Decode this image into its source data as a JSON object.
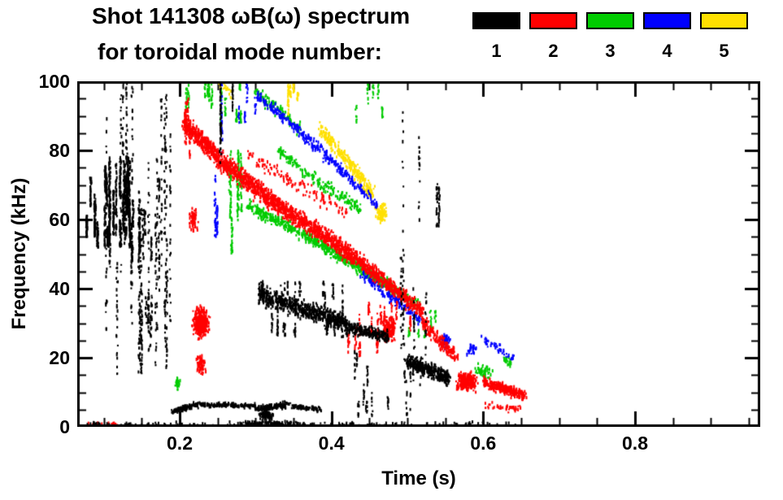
{
  "title": {
    "line1": "Shot 141308 ωB(ω) spectrum",
    "line2": "for toroidal mode number:"
  },
  "legend": {
    "modes": [
      {
        "label": "1",
        "color": "#000000"
      },
      {
        "label": "2",
        "color": "#ff0000"
      },
      {
        "label": "3",
        "color": "#00cc00"
      },
      {
        "label": "4",
        "color": "#0000ff"
      },
      {
        "label": "5",
        "color": "#ffe000"
      }
    ]
  },
  "chart_data": {
    "type": "scatter",
    "title": "Shot 141308 ωB(ω) spectrum for toroidal mode number 1-5",
    "xlabel": "Time (s)",
    "ylabel": "Frequency (kHz)",
    "xlim": [
      0.065,
      0.965
    ],
    "ylim": [
      0,
      100
    ],
    "xticks": [
      0.2,
      0.4,
      0.6,
      0.8
    ],
    "xtick_labels": [
      "0.2",
      "0.4",
      "0.6",
      "0.8"
    ],
    "yticks": [
      0,
      20,
      40,
      60,
      80,
      100
    ],
    "ytick_labels": [
      "0",
      "20",
      "40",
      "60",
      "80",
      "100"
    ],
    "minor_x_step": 0.05,
    "minor_y_step": 5,
    "grid": false,
    "legend_position": "top",
    "series": [
      {
        "name": "n=3",
        "mode": 3,
        "color": "#00cc00",
        "bands": [
          {
            "kind": "vcols",
            "t": [
              0.225,
              0.3
            ],
            "f": [
              88,
              100
            ],
            "cols": 10,
            "npts": 13
          },
          {
            "kind": "seg",
            "t": [
              0.3,
              0.36
            ],
            "f": [
              97,
              86
            ],
            "spread": 3,
            "n": 110
          },
          {
            "kind": "vcols",
            "t": [
              0.258,
              0.285
            ],
            "f": [
              50,
              80
            ],
            "cols": 6,
            "npts": 28
          },
          {
            "kind": "seg",
            "t": [
              0.29,
              0.36
            ],
            "f": [
              64,
              56
            ],
            "spread": 2.5,
            "n": 210
          },
          {
            "kind": "seg",
            "t": [
              0.36,
              0.43
            ],
            "f": [
              56,
              47
            ],
            "spread": 2.5,
            "n": 250
          },
          {
            "kind": "seg",
            "t": [
              0.43,
              0.48
            ],
            "f": [
              47,
              40
            ],
            "spread": 2.5,
            "n": 210
          },
          {
            "kind": "seg",
            "t": [
              0.48,
              0.515
            ],
            "f": [
              40,
              35
            ],
            "spread": 2,
            "n": 80
          },
          {
            "kind": "seg",
            "t": [
              0.36,
              0.44
            ],
            "f": [
              74,
              63
            ],
            "spread": 2.5,
            "n": 130
          },
          {
            "kind": "seg",
            "t": [
              0.33,
              0.36
            ],
            "f": [
              80,
              75
            ],
            "spread": 2,
            "n": 55
          },
          {
            "kind": "vcols",
            "t": [
              0.43,
              0.47
            ],
            "f": [
              88,
              100
            ],
            "cols": 5,
            "npts": 9
          },
          {
            "kind": "vcols",
            "t": [
              0.5,
              0.56
            ],
            "f": [
              24,
              34
            ],
            "cols": 6,
            "npts": 7
          },
          {
            "kind": "blob",
            "c": [
              0.6,
              16
            ],
            "r": [
              0.015,
              3
            ],
            "n": 55
          },
          {
            "kind": "blob",
            "c": [
              0.632,
              19
            ],
            "r": [
              0.008,
              2
            ],
            "n": 22
          },
          {
            "kind": "vcols",
            "t": [
              0.19,
              0.215
            ],
            "f": [
              85,
              100
            ],
            "cols": 4,
            "npts": 11
          },
          {
            "kind": "blob",
            "c": [
              0.197,
              12
            ],
            "r": [
              0.005,
              3
            ],
            "n": 22
          }
        ]
      },
      {
        "name": "n=5",
        "mode": 5,
        "color": "#ffe000",
        "bands": [
          {
            "kind": "vcols",
            "t": [
              0.335,
              0.36
            ],
            "f": [
              90,
              100
            ],
            "cols": 5,
            "npts": 14
          },
          {
            "kind": "seg",
            "t": [
              0.385,
              0.425
            ],
            "f": [
              86,
              76
            ],
            "spread": 3,
            "n": 150
          },
          {
            "kind": "seg",
            "t": [
              0.425,
              0.455
            ],
            "f": [
              76,
              67
            ],
            "spread": 3,
            "n": 140
          },
          {
            "kind": "blob",
            "c": [
              0.465,
              62
            ],
            "r": [
              0.01,
              4
            ],
            "n": 90
          },
          {
            "kind": "seg",
            "t": [
              0.25,
              0.27
            ],
            "f": [
              100,
              96
            ],
            "spread": 2,
            "n": 25
          }
        ]
      },
      {
        "name": "n=4",
        "mode": 4,
        "color": "#0000ff",
        "bands": [
          {
            "kind": "vcols",
            "t": [
              0.246,
              0.258
            ],
            "f": [
              55,
              100
            ],
            "cols": 3,
            "npts": 26
          },
          {
            "kind": "seg",
            "t": [
              0.3,
              0.345
            ],
            "f": [
              96,
              88
            ],
            "spread": 2,
            "n": 80
          },
          {
            "kind": "seg",
            "t": [
              0.345,
              0.415
            ],
            "f": [
              88,
              74
            ],
            "spread": 2.5,
            "n": 160
          },
          {
            "kind": "seg",
            "t": [
              0.415,
              0.46
            ],
            "f": [
              74,
              64
            ],
            "spread": 2,
            "n": 80
          },
          {
            "kind": "seg",
            "t": [
              0.44,
              0.52
            ],
            "f": [
              44,
              31
            ],
            "spread": 2.5,
            "n": 150
          },
          {
            "kind": "blob",
            "c": [
              0.55,
              25
            ],
            "r": [
              0.01,
              3
            ],
            "n": 45
          },
          {
            "kind": "blob",
            "c": [
              0.585,
              22
            ],
            "r": [
              0.008,
              2.5
            ],
            "n": 28
          },
          {
            "kind": "seg",
            "t": [
              0.6,
              0.64
            ],
            "f": [
              25,
              20
            ],
            "spread": 2,
            "n": 45
          },
          {
            "kind": "vcols",
            "t": [
              0.275,
              0.3
            ],
            "f": [
              88,
              100
            ],
            "cols": 4,
            "npts": 9
          }
        ]
      },
      {
        "name": "n=2",
        "mode": 2,
        "color": "#ff0000",
        "bands": [
          {
            "kind": "seg",
            "t": [
              0.205,
              0.26
            ],
            "f": [
              88,
              76
            ],
            "spread": 4,
            "n": 430
          },
          {
            "kind": "seg",
            "t": [
              0.26,
              0.33
            ],
            "f": [
              76,
              64
            ],
            "spread": 4,
            "n": 480
          },
          {
            "kind": "seg",
            "t": [
              0.33,
              0.4
            ],
            "f": [
              64,
              54
            ],
            "spread": 3.5,
            "n": 430
          },
          {
            "kind": "seg",
            "t": [
              0.4,
              0.465
            ],
            "f": [
              54,
              43
            ],
            "spread": 3.5,
            "n": 400
          },
          {
            "kind": "seg",
            "t": [
              0.465,
              0.52
            ],
            "f": [
              43,
              33
            ],
            "spread": 3,
            "n": 260
          },
          {
            "kind": "vcols",
            "t": [
              0.203,
              0.225
            ],
            "f": [
              78,
              96
            ],
            "cols": 5,
            "npts": 13
          },
          {
            "kind": "seg",
            "t": [
              0.29,
              0.42
            ],
            "f": [
              78,
              62
            ],
            "spread": 3,
            "n": 120
          },
          {
            "kind": "blob",
            "c": [
              0.228,
              30
            ],
            "r": [
              0.013,
              5.5
            ],
            "n": 400
          },
          {
            "kind": "blob",
            "c": [
              0.228,
              18
            ],
            "r": [
              0.008,
              3.5
            ],
            "n": 80
          },
          {
            "kind": "blob",
            "c": [
              0.218,
              60
            ],
            "r": [
              0.008,
              5
            ],
            "n": 60
          },
          {
            "kind": "vcols",
            "t": [
              0.42,
              0.505
            ],
            "f": [
              20,
              36
            ],
            "cols": 14,
            "npts": 12
          },
          {
            "kind": "blob",
            "c": [
              0.475,
              28
            ],
            "r": [
              0.012,
              5
            ],
            "n": 140
          },
          {
            "kind": "seg",
            "t": [
              0.52,
              0.565
            ],
            "f": [
              30,
              20
            ],
            "spread": 3,
            "n": 190
          },
          {
            "kind": "blob",
            "c": [
              0.578,
              13
            ],
            "r": [
              0.018,
              3.5
            ],
            "n": 260
          },
          {
            "kind": "seg",
            "t": [
              0.6,
              0.655
            ],
            "f": [
              13,
              9
            ],
            "spread": 2.2,
            "n": 290
          },
          {
            "kind": "seg",
            "t": [
              0.6,
              0.65
            ],
            "f": [
              6,
              5
            ],
            "spread": 1.5,
            "n": 40
          },
          {
            "kind": "seg",
            "t": [
              0.08,
              0.12
            ],
            "f": [
              0.8,
              0.8
            ],
            "spread": 0.6,
            "n": 15
          }
        ]
      },
      {
        "name": "n=1",
        "mode": 1,
        "color": "#000000",
        "bands": [
          {
            "kind": "vcols",
            "t": [
              0.077,
              0.09
            ],
            "f": [
              55,
              73
            ],
            "cols": 4,
            "npts": 40
          },
          {
            "kind": "vcols",
            "t": [
              0.09,
              0.135
            ],
            "f": [
              52,
              78
            ],
            "cols": 20,
            "npts": 45
          },
          {
            "kind": "vcols",
            "t": [
              0.1,
              0.19
            ],
            "f": [
              15,
              100
            ],
            "cols": 24,
            "npts": 26
          },
          {
            "kind": "vcols",
            "t": [
              0.135,
              0.165
            ],
            "f": [
              48,
              66
            ],
            "cols": 8,
            "npts": 18
          },
          {
            "kind": "vcols",
            "t": [
              0.145,
              0.185
            ],
            "f": [
              22,
              40
            ],
            "cols": 8,
            "npts": 10
          },
          {
            "kind": "seg",
            "t": [
              0.305,
              0.42
            ],
            "f": [
              38,
              30
            ],
            "spread": 3.5,
            "n": 600
          },
          {
            "kind": "vcols",
            "t": [
              0.305,
              0.42
            ],
            "f": [
              26,
              42
            ],
            "cols": 24,
            "npts": 10
          },
          {
            "kind": "seg",
            "t": [
              0.42,
              0.475
            ],
            "f": [
              29,
              26
            ],
            "spread": 2.5,
            "n": 220
          },
          {
            "kind": "seg",
            "t": [
              0.5,
              0.555
            ],
            "f": [
              19,
              14
            ],
            "spread": 3,
            "n": 380
          },
          {
            "kind": "vcols",
            "t": [
              0.49,
              0.525
            ],
            "f": [
              20,
              92
            ],
            "cols": 6,
            "npts": 16
          },
          {
            "kind": "vcols",
            "t": [
              0.53,
              0.545
            ],
            "f": [
              58,
              92
            ],
            "cols": 2,
            "npts": 22
          },
          {
            "kind": "seg",
            "t": [
              0.19,
              0.225
            ],
            "f": [
              4.5,
              6.5
            ],
            "spread": 1,
            "n": 110
          },
          {
            "kind": "seg",
            "t": [
              0.225,
              0.3
            ],
            "f": [
              6.5,
              6
            ],
            "spread": 1,
            "n": 150
          },
          {
            "kind": "seg",
            "t": [
              0.3,
              0.345
            ],
            "f": [
              5,
              6.5
            ],
            "spread": 1.2,
            "n": 130
          },
          {
            "kind": "seg",
            "t": [
              0.345,
              0.385
            ],
            "f": [
              6,
              5
            ],
            "spread": 1,
            "n": 90
          },
          {
            "kind": "blob",
            "c": [
              0.315,
              3.5
            ],
            "r": [
              0.012,
              2.2
            ],
            "n": 80
          },
          {
            "kind": "seg",
            "t": [
              0.07,
              0.65
            ],
            "f": [
              0.8,
              0.8
            ],
            "spread": 0.8,
            "n": 150
          },
          {
            "kind": "seg",
            "t": [
              0.28,
              0.36
            ],
            "f": [
              1,
              1
            ],
            "spread": 0.9,
            "n": 80
          },
          {
            "kind": "vcols",
            "t": [
              0.43,
              0.53
            ],
            "f": [
              3,
              22
            ],
            "cols": 14,
            "npts": 9
          },
          {
            "kind": "vcols",
            "t": [
              0.245,
              0.275
            ],
            "f": [
              75,
              100
            ],
            "cols": 4,
            "npts": 16
          }
        ]
      }
    ]
  }
}
